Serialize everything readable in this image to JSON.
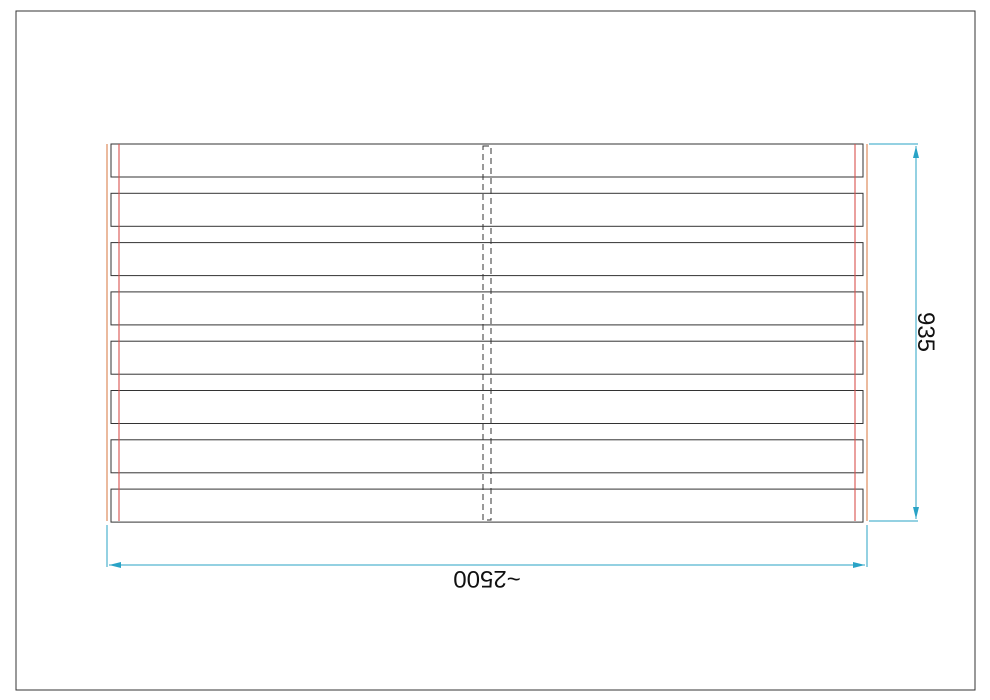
{
  "drawing": {
    "slat_count": 8,
    "dimensions": {
      "height_label": "935",
      "width_label": "~2500"
    },
    "colors": {
      "frame": "#333333",
      "slat": "#333333",
      "outer_edge": "#e0946a",
      "inner_edge": "#d9534f",
      "dimension": "#29a3c6",
      "centerline": "#333333"
    }
  }
}
